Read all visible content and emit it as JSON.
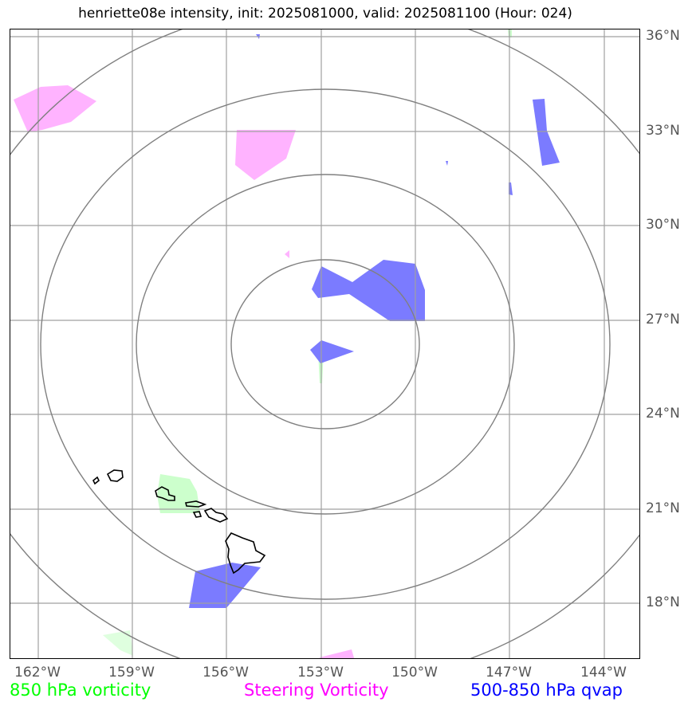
{
  "title": "henriette08e intensity, init: 2025081000, valid: 2025081100 (Hour: 024)",
  "latitude_labels": [
    "36°N",
    "33°N",
    "30°N",
    "27°N",
    "24°N",
    "21°N",
    "18°N"
  ],
  "longitude_labels": [
    "162°W",
    "159°W",
    "156°W",
    "153°W",
    "150°W",
    "147°W",
    "144°W"
  ],
  "legend": {
    "vorticity_850": {
      "label": "850 hPa vorticity",
      "color": "#00ff00"
    },
    "steering_vorticity": {
      "label": "Steering Vorticity",
      "color": "#ff00ff"
    },
    "qvap": {
      "label": "500-850 hPa qvap",
      "color": "#0000ff"
    }
  },
  "colors": {
    "gridline": "#a0a0a0",
    "range_ring": "#808080",
    "coastline": "#000000",
    "vorticity_850_fill": "#ccffcc",
    "steering_fill": "#ffb3ff",
    "qvap_fill": "#7b7bff"
  },
  "storm_center": {
    "lat": 26,
    "lon": -153
  }
}
